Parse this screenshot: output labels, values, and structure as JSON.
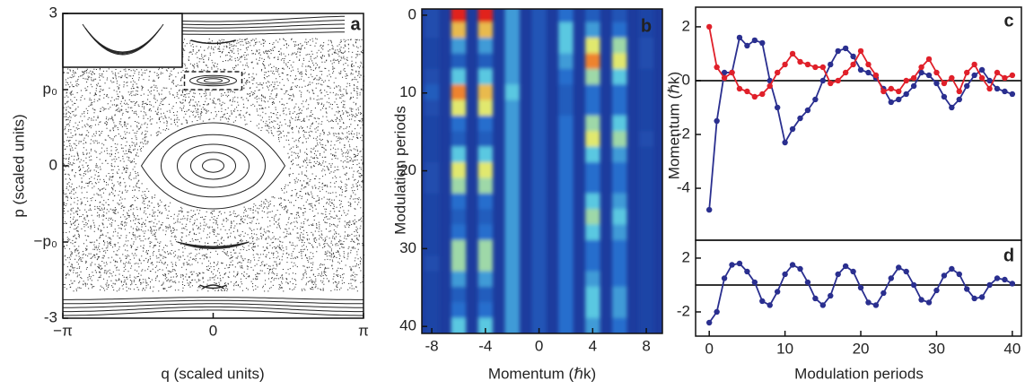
{
  "chart_data": [
    {
      "type": "poincare",
      "label": "a",
      "xlabel": "q (scaled units)",
      "ylabel": "p (scaled units)",
      "xlim": [
        -3.14159,
        3.14159
      ],
      "ylim": [
        -3,
        3
      ],
      "xticks": [
        {
          "value": -3.14159,
          "label": "−π"
        },
        0,
        {
          "value": 3.14159,
          "label": "π"
        }
      ],
      "yticks": [
        -3,
        {
          "value": -1.5,
          "label": "−p₀"
        },
        0,
        {
          "value": 1.5,
          "label": "p₀"
        },
        3
      ]
    },
    {
      "type": "heatmap",
      "label": "b",
      "xlabel": "Momentum (ℏk)",
      "ylabel": "Modulation periods",
      "xlim": [
        -8.74,
        9.2
      ],
      "ylim": [
        -0.8,
        40.9
      ],
      "y_inverted": true,
      "xticks": [
        -8,
        -4,
        0,
        4,
        8
      ],
      "yticks": [
        0,
        10,
        20,
        30,
        40
      ],
      "x": [
        -8,
        -6,
        -4,
        -2,
        0,
        2,
        4,
        6,
        8
      ],
      "y": [
        0,
        2,
        4,
        6,
        8,
        10,
        12,
        14,
        16,
        18,
        20,
        22,
        24,
        26,
        28,
        30,
        32,
        34,
        36,
        38,
        40
      ],
      "values": [
        [
          0.1,
          1,
          1,
          0.4,
          0.15,
          0.3,
          0.2,
          0.15,
          0.05
        ],
        [
          0.1,
          0.8,
          0.8,
          0.4,
          0.15,
          0.5,
          0.4,
          0.3,
          0.05
        ],
        [
          0.05,
          0.4,
          0.4,
          0.4,
          0.15,
          0.5,
          0.7,
          0.6,
          0.1
        ],
        [
          0.05,
          0.2,
          0.2,
          0.4,
          0.15,
          0.4,
          0.9,
          0.7,
          0.1
        ],
        [
          0.1,
          0.5,
          0.5,
          0.4,
          0.15,
          0.3,
          0.6,
          0.5,
          0.05
        ],
        [
          0.2,
          0.9,
          0.8,
          0.5,
          0.15,
          0.2,
          0.3,
          0.3,
          0.05
        ],
        [
          0.1,
          0.7,
          0.7,
          0.4,
          0.15,
          0.2,
          0.3,
          0.3,
          0.05
        ],
        [
          0.05,
          0.3,
          0.3,
          0.4,
          0.15,
          0.3,
          0.6,
          0.5,
          0.05
        ],
        [
          0.05,
          0.2,
          0.2,
          0.4,
          0.15,
          0.3,
          0.7,
          0.6,
          0.1
        ],
        [
          0.05,
          0.5,
          0.5,
          0.4,
          0.15,
          0.3,
          0.5,
          0.4,
          0.05
        ],
        [
          0.1,
          0.7,
          0.7,
          0.4,
          0.15,
          0.3,
          0.3,
          0.3,
          0.05
        ],
        [
          0.1,
          0.6,
          0.6,
          0.4,
          0.15,
          0.3,
          0.3,
          0.3,
          0.05
        ],
        [
          0.05,
          0.3,
          0.3,
          0.4,
          0.15,
          0.3,
          0.5,
          0.4,
          0.05
        ],
        [
          0.05,
          0.2,
          0.2,
          0.4,
          0.15,
          0.3,
          0.6,
          0.5,
          0.05
        ],
        [
          0.05,
          0.3,
          0.3,
          0.4,
          0.15,
          0.3,
          0.5,
          0.4,
          0.05
        ],
        [
          0.05,
          0.6,
          0.6,
          0.4,
          0.15,
          0.3,
          0.3,
          0.3,
          0.05
        ],
        [
          0.1,
          0.6,
          0.6,
          0.4,
          0.15,
          0.3,
          0.3,
          0.3,
          0.05
        ],
        [
          0.05,
          0.4,
          0.4,
          0.4,
          0.15,
          0.3,
          0.4,
          0.3,
          0.05
        ],
        [
          0.05,
          0.2,
          0.2,
          0.4,
          0.15,
          0.3,
          0.5,
          0.4,
          0.05
        ],
        [
          0.05,
          0.3,
          0.3,
          0.4,
          0.15,
          0.3,
          0.5,
          0.4,
          0.05
        ],
        [
          0.05,
          0.5,
          0.5,
          0.4,
          0.15,
          0.3,
          0.4,
          0.3,
          0.05
        ]
      ]
    },
    {
      "type": "line",
      "label": "c",
      "ylabel": "Momentum (ℏk)",
      "xlim": [
        -1.8,
        41.2
      ],
      "ylim": [
        -5.93,
        2.73
      ],
      "yticks": [
        -4,
        -2,
        0,
        2
      ],
      "zero_line": true,
      "x": [
        0,
        1,
        2,
        3,
        4,
        5,
        6,
        7,
        8,
        9,
        10,
        11,
        12,
        13,
        14,
        15,
        16,
        17,
        18,
        19,
        20,
        21,
        22,
        23,
        24,
        25,
        26,
        27,
        28,
        29,
        30,
        31,
        32,
        33,
        34,
        35,
        36,
        37,
        38,
        39,
        40
      ],
      "series": [
        {
          "color": "#2a2f8f",
          "values": [
            -4.8,
            -1.5,
            0.3,
            0.3,
            1.6,
            1.3,
            1.5,
            1.4,
            0,
            -1,
            -2.3,
            -1.8,
            -1.4,
            -1.1,
            -0.7,
            0,
            0.6,
            1.1,
            1.2,
            0.9,
            0.4,
            0.3,
            0.1,
            -0.3,
            -0.8,
            -0.7,
            -0.5,
            -0.2,
            0.3,
            0.2,
            -0.1,
            -0.6,
            -1,
            -0.7,
            -0.2,
            0.2,
            0.4,
            0,
            -0.3,
            -0.4,
            -0.5
          ]
        },
        {
          "color": "#e0202a",
          "values": [
            2,
            0.5,
            0.1,
            0.3,
            -0.3,
            -0.4,
            -0.6,
            -0.5,
            -0.2,
            0.3,
            0.6,
            1,
            0.7,
            0.6,
            0.5,
            0.5,
            -0.1,
            0,
            0.3,
            0.6,
            1.1,
            0.6,
            0.2,
            -0.4,
            -0.3,
            -0.4,
            0,
            0.1,
            0.5,
            0.8,
            0.3,
            -0.1,
            0.1,
            -0.4,
            0.3,
            0.6,
            0.1,
            -0.3,
            0.3,
            0.1,
            0.2
          ]
        }
      ]
    },
    {
      "type": "line",
      "label": "d",
      "xlabel": "Modulation periods",
      "xlim": [
        -1.8,
        41.2
      ],
      "ylim": [
        -3.8,
        3.33
      ],
      "xticks": [
        0,
        10,
        20,
        30,
        40
      ],
      "yticks": [
        -2,
        2
      ],
      "zero_line": true,
      "x": [
        0,
        1,
        2,
        3,
        4,
        5,
        6,
        7,
        8,
        9,
        10,
        11,
        12,
        13,
        14,
        15,
        16,
        17,
        18,
        19,
        20,
        21,
        22,
        23,
        24,
        25,
        26,
        27,
        28,
        29,
        30,
        31,
        32,
        33,
        34,
        35,
        36,
        37,
        38,
        39,
        40
      ],
      "series": [
        {
          "color": "#2a2f8f",
          "values": [
            -2.8,
            -2,
            0.5,
            1.5,
            1.6,
            1,
            0.2,
            -1.2,
            -1.5,
            -0.5,
            0.8,
            1.5,
            1.2,
            0.2,
            -1,
            -1.5,
            -0.8,
            0.8,
            1.4,
            1,
            -0.2,
            -1.3,
            -1.5,
            -0.6,
            0.5,
            1.3,
            1,
            0,
            -1.1,
            -1.3,
            -0.4,
            0.7,
            1.2,
            0.8,
            -0.3,
            -1,
            -0.9,
            0,
            0.5,
            0.4,
            0.1
          ]
        }
      ]
    }
  ]
}
